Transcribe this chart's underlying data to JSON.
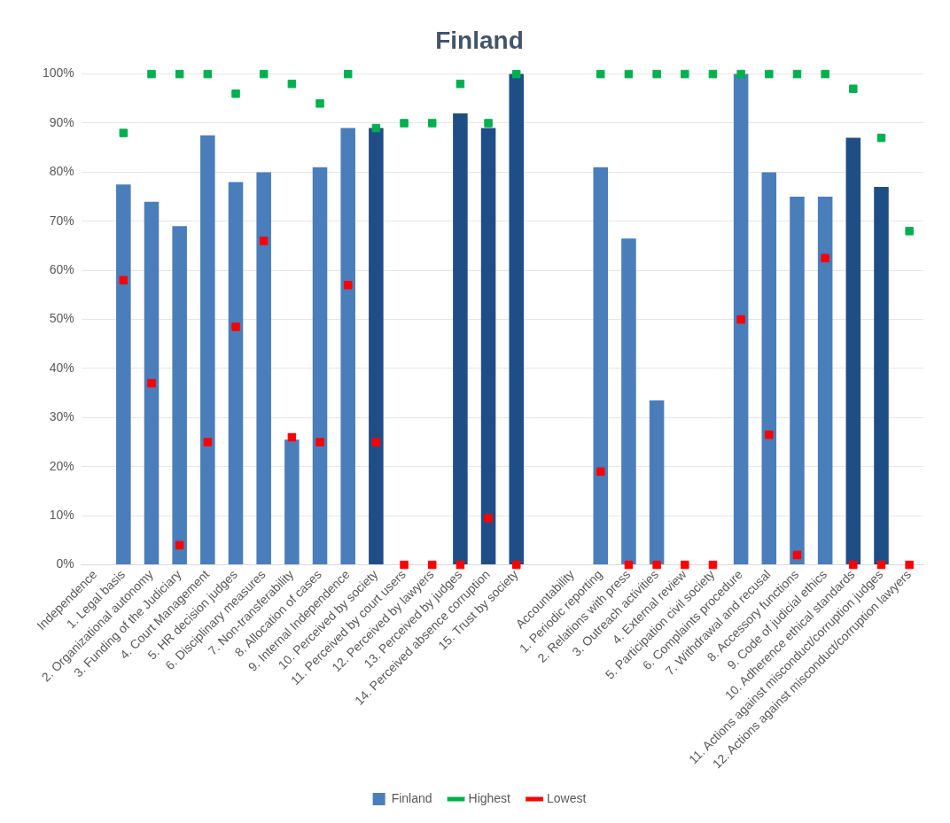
{
  "chart_data": {
    "type": "bar",
    "title": "Finland",
    "categories": [
      "Independence",
      "1. Legal basis",
      "2. Organizational autonomy",
      "3. Funding of the Judiciary",
      "4. Court Management",
      "5. HR decision judges",
      "6. Disciplinary measures",
      "7. Non-transferability",
      "8. Allocation of cases",
      "9. Internal Independence",
      "10. Perceived by society",
      "11. Perceived by court users",
      "12. Perceived by lawyers",
      "13. Perceived by judges",
      "14. Perceived absence corruption",
      "15. Trust by society",
      null,
      "Accountability",
      "1. Periodic reporting",
      "2. Relations with press",
      "3. Outreach activities",
      "4. External review",
      "5. Participation civil society",
      "6. Complaints procedure",
      "7. Withdrawal and recusal",
      "8. Accessory functions",
      "9. Code of judicial ethics",
      "10. Adherence ethical standards",
      "11. Actions against misconduct/corruption judges",
      "12. Actions against misconduct/corruption lawyers"
    ],
    "series": [
      {
        "name": "Finland",
        "color": "#4a7ebb",
        "colors": [
          "#4a7ebb",
          "#4a7ebb",
          "#4a7ebb",
          "#4a7ebb",
          "#4a7ebb",
          "#4a7ebb",
          "#4a7ebb",
          "#4a7ebb",
          "#4a7ebb",
          "#4a7ebb",
          "#1f4e86",
          "#1f4e86",
          "#1f4e86",
          "#1f4e86",
          "#1f4e86",
          "#1f4e86",
          "#4a7ebb",
          "#4a7ebb",
          "#4a7ebb",
          "#4a7ebb",
          "#4a7ebb",
          "#4a7ebb",
          "#4a7ebb",
          "#4a7ebb",
          "#4a7ebb",
          "#4a7ebb",
          "#4a7ebb",
          "#1f4e86",
          "#1f4e86",
          "#1f4e86"
        ],
        "values": [
          null,
          77.5,
          74,
          69,
          87.5,
          78,
          80,
          25.5,
          81,
          89,
          89,
          null,
          null,
          92,
          89,
          100,
          null,
          null,
          81,
          66.5,
          33.5,
          null,
          null,
          100,
          80,
          75,
          75,
          87,
          77,
          null
        ]
      },
      {
        "name": "Highest",
        "type": "scatter",
        "marker": "square",
        "color": "#00b050",
        "values": [
          null,
          88,
          100,
          100,
          100,
          96,
          100,
          98,
          94,
          100,
          89,
          90,
          90,
          98,
          90,
          100,
          null,
          null,
          100,
          100,
          100,
          100,
          100,
          100,
          100,
          100,
          100,
          97,
          87,
          68
        ]
      },
      {
        "name": "Lowest",
        "type": "scatter",
        "marker": "square",
        "color": "#ff0000",
        "values": [
          null,
          58,
          37,
          4,
          25,
          48.5,
          66,
          26,
          25,
          57,
          25,
          0,
          0,
          0,
          9.5,
          0,
          null,
          null,
          19,
          0,
          0,
          0,
          0,
          50,
          26.5,
          2,
          62.5,
          0,
          0,
          0
        ]
      }
    ],
    "ylim": [
      0,
      100
    ],
    "yticks": [
      {
        "value": 0,
        "label": "0%"
      },
      {
        "value": 10,
        "label": "10%"
      },
      {
        "value": 20,
        "label": "20%"
      },
      {
        "value": 30,
        "label": "30%"
      },
      {
        "value": 40,
        "label": "40%"
      },
      {
        "value": 50,
        "label": "50%"
      },
      {
        "value": 60,
        "label": "60%"
      },
      {
        "value": 70,
        "label": "70%"
      },
      {
        "value": 80,
        "label": "80%"
      },
      {
        "value": 90,
        "label": "90%"
      },
      {
        "value": 100,
        "label": "100%"
      }
    ],
    "grid": "y",
    "legend": "bottom"
  }
}
